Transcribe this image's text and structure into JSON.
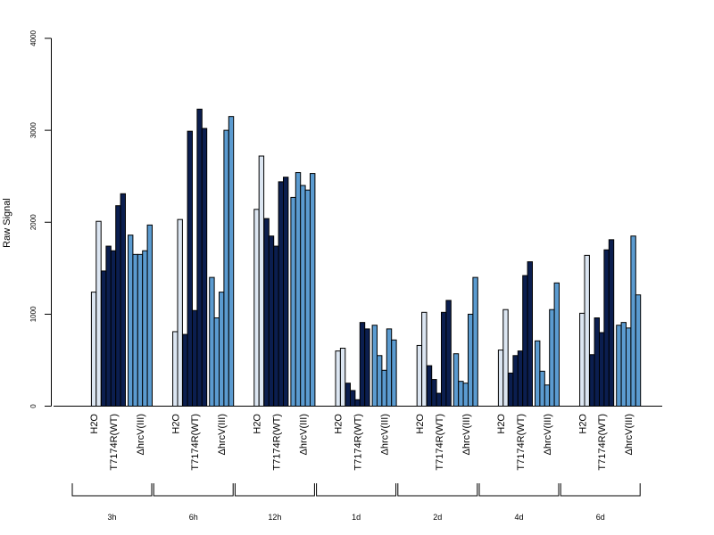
{
  "chart_data": {
    "type": "bar",
    "ylabel": "Raw Signal",
    "ylim": [
      0,
      4000
    ],
    "yticks": [
      0,
      1000,
      2000,
      3000,
      4000
    ],
    "grid": false,
    "colors": {
      "H2O": "#dce6f2",
      "T7174R(WT)": "#0b1e4f",
      "ΔhrcV(III)": "#5b9bd0"
    },
    "times": [
      "3h",
      "6h",
      "12h",
      "1d",
      "2d",
      "4d",
      "6d"
    ],
    "groups": [
      "H2O",
      "T7174R(WT)",
      "ΔhrcV(III)"
    ],
    "values": [
      {
        "time": "3h",
        "H2O": [
          0,
          1240,
          2010
        ],
        "T7174R(WT)": [
          1470,
          1740,
          1690,
          2180,
          2310
        ],
        "ΔhrcV(III)": [
          1860,
          1650,
          1650,
          1690,
          1970
        ]
      },
      {
        "time": "6h",
        "H2O": [
          0,
          810,
          2030
        ],
        "T7174R(WT)": [
          780,
          2990,
          1040,
          3230,
          3020
        ],
        "ΔhrcV(III)": [
          1400,
          960,
          1240,
          3000,
          3150
        ]
      },
      {
        "time": "12h",
        "H2O": [
          0,
          2140,
          2720
        ],
        "T7174R(WT)": [
          2040,
          1850,
          1740,
          2440,
          2490
        ],
        "ΔhrcV(III)": [
          2270,
          2540,
          2400,
          2350,
          2530
        ]
      },
      {
        "time": "1d",
        "H2O": [
          0,
          600,
          630
        ],
        "T7174R(WT)": [
          250,
          170,
          70,
          910,
          840
        ],
        "ΔhrcV(III)": [
          880,
          550,
          390,
          840,
          720
        ]
      },
      {
        "time": "2d",
        "H2O": [
          0,
          660,
          1020
        ],
        "T7174R(WT)": [
          440,
          290,
          140,
          1020,
          1150
        ],
        "ΔhrcV(III)": [
          570,
          270,
          250,
          1000,
          1400
        ]
      },
      {
        "time": "4d",
        "H2O": [
          0,
          610,
          1050
        ],
        "T7174R(WT)": [
          360,
          550,
          600,
          1420,
          1570
        ],
        "ΔhrcV(III)": [
          710,
          380,
          230,
          1050,
          1340
        ]
      },
      {
        "time": "6d",
        "H2O": [
          0,
          1010,
          1640
        ],
        "T7174R(WT)": [
          560,
          960,
          800,
          1700,
          1810
        ],
        "ΔhrcV(III)": [
          880,
          910,
          850,
          1850,
          1210
        ]
      }
    ]
  }
}
